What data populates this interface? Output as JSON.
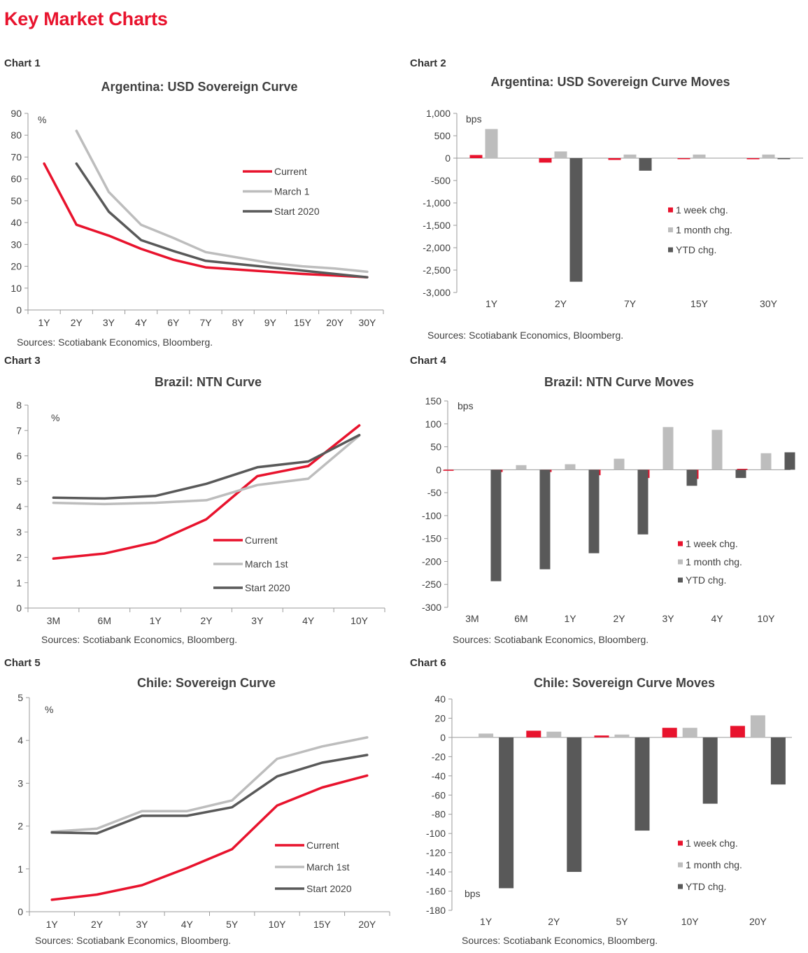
{
  "page": {
    "title": "Key Market Charts"
  },
  "charts": [
    {
      "label": "Chart 1",
      "source": "Sources: Scotiabank Economics, Bloomberg."
    },
    {
      "label": "Chart 2",
      "source": "Sources: Scotiabank Economics, Bloomberg."
    },
    {
      "label": "Chart 3",
      "source": "Sources: Scotiabank Economics, Bloomberg."
    },
    {
      "label": "Chart 4",
      "source": "Sources: Scotiabank Economics, Bloomberg."
    },
    {
      "label": "Chart 5",
      "source": "Sources: Scotiabank Economics, Bloomberg."
    },
    {
      "label": "Chart 6",
      "source": "Sources: Scotiabank Economics, Bloomberg."
    }
  ],
  "chart_data": [
    {
      "type": "line",
      "title": "Argentina: USD Sovereign Curve",
      "unit_label": "%",
      "xlabel": "",
      "ylabel": "",
      "categories": [
        "1Y",
        "2Y",
        "3Y",
        "4Y",
        "6Y",
        "7Y",
        "8Y",
        "9Y",
        "15Y",
        "20Y",
        "30Y"
      ],
      "ylim": [
        0,
        90
      ],
      "yticks": [
        0,
        10,
        20,
        30,
        40,
        50,
        60,
        70,
        80,
        90
      ],
      "ytick_labels": [
        "0",
        "10",
        "20",
        "30",
        "40",
        "50",
        "60",
        "70",
        "80",
        "90"
      ],
      "legend_position": "right",
      "series": [
        {
          "name": "Current",
          "color": "#e8132d",
          "values": [
            67,
            39,
            34,
            28,
            23,
            19.5,
            18.5,
            17.5,
            16.5,
            15.8,
            15
          ]
        },
        {
          "name": "March 1",
          "color": "#bdbdbd",
          "values": [
            null,
            82,
            54,
            39,
            33,
            26.5,
            24,
            21.5,
            20,
            19,
            17.5
          ]
        },
        {
          "name": "Start 2020",
          "color": "#595959",
          "values": [
            null,
            67,
            45,
            32,
            27,
            22.5,
            21,
            19.5,
            18,
            16.5,
            15
          ]
        }
      ]
    },
    {
      "type": "bar",
      "title": "Argentina: USD Sovereign Curve Moves",
      "unit_label": "bps",
      "xlabel": "",
      "ylabel": "",
      "categories": [
        "1Y",
        "2Y",
        "7Y",
        "15Y",
        "30Y"
      ],
      "ylim": [
        -3000,
        1000
      ],
      "yticks": [
        -3000,
        -2500,
        -2000,
        -1500,
        -1000,
        -500,
        0,
        500,
        1000
      ],
      "ytick_labels": [
        "-3,000",
        "-2,500",
        "-2,000",
        "-1,500",
        "-1,000",
        "-500",
        "0",
        "500",
        "1,000"
      ],
      "legend_position": "right",
      "series": [
        {
          "name": "1 week chg.",
          "color": "#e8132d",
          "values": [
            70,
            -100,
            -40,
            -5,
            -25
          ]
        },
        {
          "name": "1 month chg.",
          "color": "#bdbdbd",
          "values": [
            650,
            150,
            80,
            80,
            80
          ]
        },
        {
          "name": "YTD chg.",
          "color": "#595959",
          "values": [
            0,
            -2760,
            -280,
            0,
            -10
          ]
        }
      ]
    },
    {
      "type": "line",
      "title": "Brazil: NTN Curve",
      "unit_label": "%",
      "xlabel": "",
      "ylabel": "",
      "categories": [
        "3M",
        "6M",
        "1Y",
        "2Y",
        "3Y",
        "4Y",
        "10Y"
      ],
      "ylim": [
        0,
        8
      ],
      "yticks": [
        0,
        1,
        2,
        3,
        4,
        5,
        6,
        7,
        8
      ],
      "ytick_labels": [
        "0",
        "1",
        "2",
        "3",
        "4",
        "5",
        "6",
        "7",
        "8"
      ],
      "legend_position": "bottom-right",
      "series": [
        {
          "name": "Current",
          "color": "#e8132d",
          "values": [
            1.95,
            2.15,
            2.6,
            3.5,
            5.2,
            5.6,
            7.2
          ]
        },
        {
          "name": "March 1st",
          "color": "#bdbdbd",
          "values": [
            4.15,
            4.1,
            4.15,
            4.25,
            4.85,
            5.1,
            6.8
          ]
        },
        {
          "name": "Start 2020",
          "color": "#595959",
          "values": [
            4.35,
            4.32,
            4.42,
            4.9,
            5.55,
            5.78,
            6.82
          ]
        }
      ]
    },
    {
      "type": "bar",
      "title": "Brazil: NTN Curve Moves",
      "unit_label": "bps",
      "xlabel": "",
      "ylabel": "",
      "categories": [
        "3M",
        "6M",
        "1Y",
        "2Y",
        "3Y",
        "4Y",
        "10Y"
      ],
      "ylim": [
        -300,
        150
      ],
      "yticks": [
        -300,
        -250,
        -200,
        -150,
        -100,
        -50,
        0,
        50,
        100,
        150
      ],
      "ytick_labels": [
        "-300",
        "-250",
        "-200",
        "-150",
        "-100",
        "-50",
        "0",
        "50",
        "100",
        "150"
      ],
      "legend_position": "bottom-right",
      "series": [
        {
          "name": "1 week chg.",
          "color": "#e8132d",
          "values": [
            -2,
            -5,
            -5,
            -12,
            -18,
            -20,
            2
          ]
        },
        {
          "name": "1 month chg.",
          "color": "#bdbdbd",
          "values": [
            0,
            10,
            12,
            24,
            93,
            87,
            36
          ]
        },
        {
          "name": "YTD chg.",
          "color": "#595959",
          "values": [
            -243,
            -217,
            -182,
            -141,
            -35,
            -18,
            38
          ]
        }
      ]
    },
    {
      "type": "line",
      "title": "Chile: Sovereign Curve",
      "unit_label": "%",
      "xlabel": "",
      "ylabel": "",
      "categories": [
        "1Y",
        "2Y",
        "3Y",
        "4Y",
        "5Y",
        "10Y",
        "15Y",
        "20Y"
      ],
      "ylim": [
        0,
        5
      ],
      "yticks": [
        0,
        1,
        2,
        3,
        4,
        5
      ],
      "ytick_labels": [
        "0",
        "1",
        "2",
        "3",
        "4",
        "5"
      ],
      "legend_position": "bottom-right",
      "series": [
        {
          "name": "Current",
          "color": "#e8132d",
          "values": [
            0.28,
            0.4,
            0.62,
            1.02,
            1.46,
            2.48,
            2.9,
            3.18
          ]
        },
        {
          "name": "March 1st",
          "color": "#bdbdbd",
          "values": [
            1.87,
            1.94,
            2.35,
            2.35,
            2.6,
            3.57,
            3.86,
            4.07
          ]
        },
        {
          "name": "Start 2020",
          "color": "#595959",
          "values": [
            1.85,
            1.83,
            2.24,
            2.24,
            2.44,
            3.16,
            3.48,
            3.66
          ]
        }
      ]
    },
    {
      "type": "bar",
      "title": "Chile: Sovereign Curve Moves",
      "unit_label": "bps",
      "xlabel": "",
      "ylabel": "",
      "categories": [
        "1Y",
        "2Y",
        "5Y",
        "10Y",
        "20Y"
      ],
      "ylim": [
        -180,
        40
      ],
      "yticks": [
        -180,
        -160,
        -140,
        -120,
        -100,
        -80,
        -60,
        -40,
        -20,
        0,
        20,
        40
      ],
      "ytick_labels": [
        "-180",
        "-160",
        "-140",
        "-120",
        "-100",
        "-80",
        "-60",
        "-40",
        "-20",
        "0",
        "20",
        "40"
      ],
      "legend_position": "bottom-right",
      "series": [
        {
          "name": "1 week chg.",
          "color": "#e8132d",
          "values": [
            0,
            7,
            2,
            10,
            12
          ]
        },
        {
          "name": "1 month chg.",
          "color": "#bdbdbd",
          "values": [
            4,
            6,
            3,
            10,
            23
          ]
        },
        {
          "name": "YTD chg.",
          "color": "#595959",
          "values": [
            -157,
            -140,
            -97,
            -69,
            -49
          ]
        }
      ]
    }
  ]
}
